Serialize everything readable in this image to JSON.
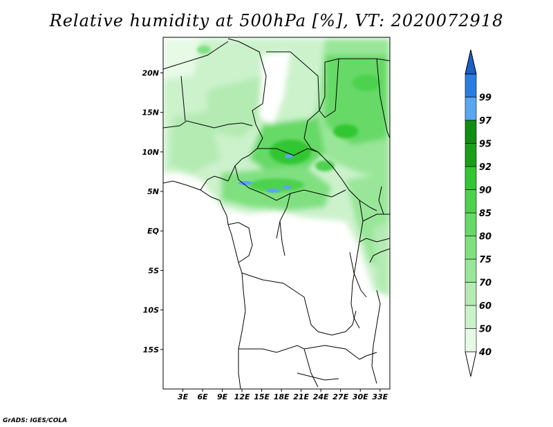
{
  "title": "Relative humidity at 500hPa [%], VT: 2020072918",
  "credit": "GrADS: IGES/COLA",
  "map": {
    "lat_labels": [
      "20N",
      "15N",
      "10N",
      "5N",
      "EQ",
      "5S",
      "10S",
      "15S"
    ],
    "lon_labels": [
      "3E",
      "6E",
      "9E",
      "12E",
      "15E",
      "18E",
      "21E",
      "24E",
      "27E",
      "30E",
      "33E"
    ],
    "lat_values": [
      20,
      15,
      10,
      5,
      0,
      -5,
      -10,
      -15
    ],
    "lon_values": [
      3,
      6,
      9,
      12,
      15,
      18,
      21,
      24,
      27,
      30,
      33
    ],
    "extent": {
      "lon_min": 0,
      "lon_max": 34.5,
      "lat_min": -20,
      "lat_max": 24.5
    }
  },
  "colorbar": {
    "labels": [
      "40",
      "50",
      "60",
      "70",
      "75",
      "80",
      "85",
      "90",
      "92",
      "95",
      "97",
      "99"
    ],
    "colors": [
      "#ffffff",
      "#e6fae6",
      "#ccf2cc",
      "#b3ebb3",
      "#99e699",
      "#80e080",
      "#66d966",
      "#4dd24d",
      "#33c633",
      "#1a9e1a",
      "#118e11",
      "#5aa6f0",
      "#2a7ee0",
      "#1c5fc6"
    ]
  },
  "palette": {
    "coastline": "#000000"
  }
}
